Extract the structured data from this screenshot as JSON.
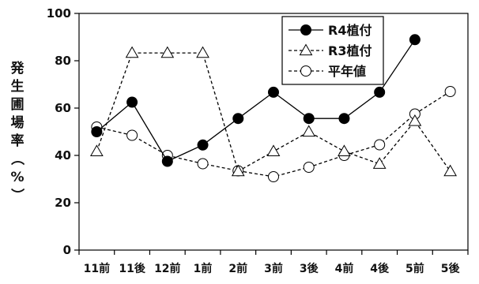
{
  "chart_data": {
    "type": "line",
    "title": "",
    "xlabel": "",
    "ylabel": "発生圃場率（%）",
    "categories": [
      "11前",
      "11後",
      "12前",
      "1前",
      "2前",
      "3前",
      "3後",
      "4前",
      "4後",
      "5前",
      "5後"
    ],
    "ylim": [
      0,
      100
    ],
    "yticks": [
      0,
      20,
      40,
      60,
      80,
      100
    ],
    "grid": false,
    "legend_position": "top-right",
    "series": [
      {
        "name": "R4植付",
        "style": "solid",
        "marker": "filled-circle",
        "color": "#000000",
        "values": [
          50,
          62.5,
          37.5,
          44.4,
          55.6,
          66.7,
          55.6,
          55.6,
          66.7,
          88.9,
          null
        ]
      },
      {
        "name": "R3植付",
        "style": "dashed",
        "marker": "open-triangle",
        "color": "#000000",
        "values": [
          41.7,
          83.3,
          83.3,
          83.3,
          33.3,
          41.7,
          50,
          41.7,
          36.4,
          54.5,
          33.3
        ]
      },
      {
        "name": "平年値",
        "style": "dashed",
        "marker": "open-circle",
        "color": "#000000",
        "values": [
          52,
          48.5,
          40,
          36.5,
          33.5,
          31,
          35,
          40,
          44.5,
          57.5,
          67
        ]
      }
    ]
  }
}
